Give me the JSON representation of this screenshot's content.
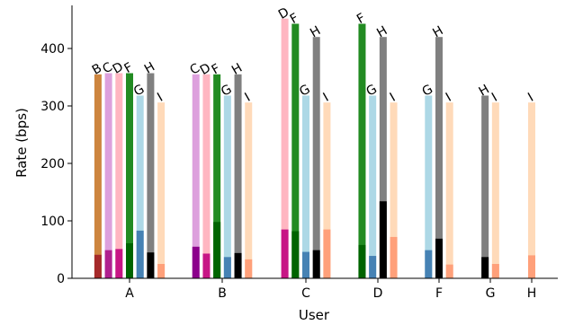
{
  "chart_data": {
    "type": "bar",
    "xlabel": "User",
    "ylabel": "Rate (bps)",
    "ylim": [
      0,
      475
    ],
    "yticks": [
      0,
      100,
      200,
      300,
      400
    ],
    "grid": false,
    "legend": "none",
    "groups": [
      {
        "category": "A",
        "bars": [
          {
            "label": "B",
            "color": "#cd853f",
            "total": 355,
            "base": 41,
            "dark": "#a52a2a"
          },
          {
            "label": "C",
            "color": "#dda0dd",
            "total": 357,
            "base": 49,
            "dark": "#b0208f"
          },
          {
            "label": "D",
            "color": "#ffb6c1",
            "total": 357,
            "base": 51,
            "dark": "#c71585"
          },
          {
            "label": "F",
            "color": "#228b22",
            "total": 357,
            "base": 61,
            "dark": "#006400"
          },
          {
            "label": "G",
            "color": "#add8e6",
            "total": 318,
            "base": 83,
            "dark": "#4682b4"
          },
          {
            "label": "H",
            "color": "#808080",
            "total": 357,
            "base": 45,
            "dark": "#000000"
          },
          {
            "label": "I",
            "color": "#ffdab9",
            "total": 306,
            "base": 25,
            "dark": "#ffa07a"
          }
        ]
      },
      {
        "category": "B",
        "bars": [
          {
            "label": "C",
            "color": "#dda0dd",
            "total": 355,
            "base": 55,
            "dark": "#8b008b"
          },
          {
            "label": "D",
            "color": "#ffb6c1",
            "total": 355,
            "base": 43,
            "dark": "#c71585"
          },
          {
            "label": "F",
            "color": "#228b22",
            "total": 355,
            "base": 98,
            "dark": "#006400"
          },
          {
            "label": "G",
            "color": "#add8e6",
            "total": 318,
            "base": 37,
            "dark": "#4682b4"
          },
          {
            "label": "H",
            "color": "#808080",
            "total": 355,
            "base": 44,
            "dark": "#000000"
          },
          {
            "label": "I",
            "color": "#ffdab9",
            "total": 306,
            "base": 33,
            "dark": "#ffa07a"
          }
        ]
      },
      {
        "category": "C",
        "bars": [
          {
            "label": "D",
            "color": "#ffb6c1",
            "total": 452,
            "base": 85,
            "dark": "#c71585"
          },
          {
            "label": "F",
            "color": "#228b22",
            "total": 443,
            "base": 82,
            "dark": "#006400"
          },
          {
            "label": "G",
            "color": "#add8e6",
            "total": 318,
            "base": 46,
            "dark": "#4682b4"
          },
          {
            "label": "H",
            "color": "#808080",
            "total": 420,
            "base": 49,
            "dark": "#000000"
          },
          {
            "label": "I",
            "color": "#ffdab9",
            "total": 306,
            "base": 85,
            "dark": "#ffa07a"
          }
        ]
      },
      {
        "category": "D",
        "bars": [
          {
            "label": "F",
            "color": "#228b22",
            "total": 443,
            "base": 58,
            "dark": "#006400"
          },
          {
            "label": "G",
            "color": "#add8e6",
            "total": 318,
            "base": 39,
            "dark": "#4682b4"
          },
          {
            "label": "H",
            "color": "#808080",
            "total": 420,
            "base": 134,
            "dark": "#000000"
          },
          {
            "label": "I",
            "color": "#ffdab9",
            "total": 306,
            "base": 72,
            "dark": "#ffa07a"
          }
        ]
      },
      {
        "category": "F",
        "bars": [
          {
            "label": "G",
            "color": "#add8e6",
            "total": 318,
            "base": 49,
            "dark": "#4682b4"
          },
          {
            "label": "H",
            "color": "#808080",
            "total": 420,
            "base": 69,
            "dark": "#000000"
          },
          {
            "label": "I",
            "color": "#ffdab9",
            "total": 306,
            "base": 24,
            "dark": "#ffa07a"
          }
        ]
      },
      {
        "category": "G",
        "bars": [
          {
            "label": "H",
            "color": "#808080",
            "total": 318,
            "base": 37,
            "dark": "#000000"
          },
          {
            "label": "I",
            "color": "#ffdab9",
            "total": 306,
            "base": 25,
            "dark": "#ffa07a"
          }
        ]
      },
      {
        "category": "H",
        "bars": [
          {
            "label": "I",
            "color": "#ffdab9",
            "total": 306,
            "base": 40,
            "dark": "#ffa07a"
          }
        ]
      }
    ]
  }
}
